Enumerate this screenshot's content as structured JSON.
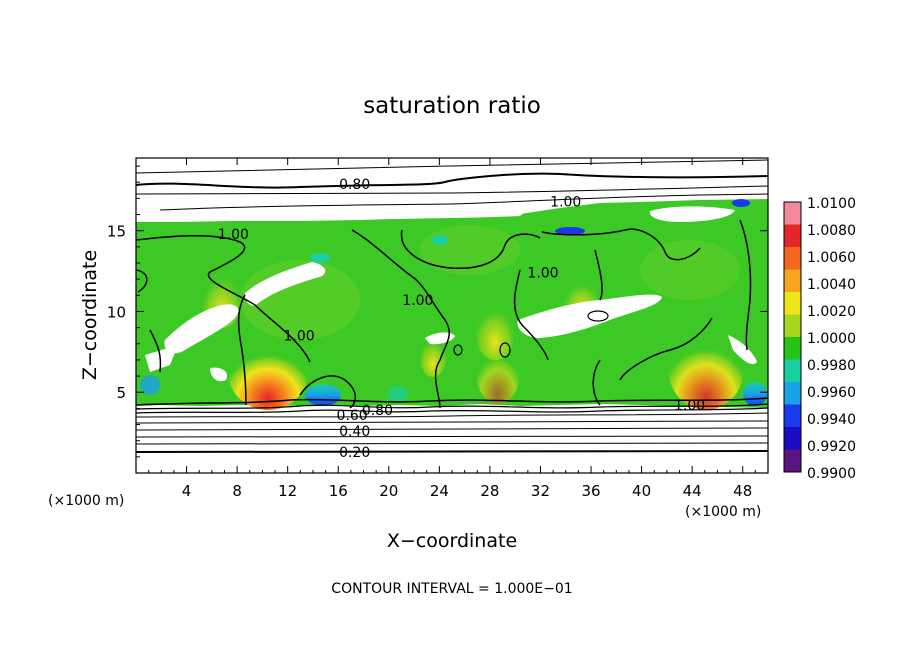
{
  "chart_data": {
    "type": "heatmap",
    "title": "saturation ratio",
    "xlabel": "X−coordinate",
    "ylabel": "Z−coordinate",
    "x_unit_left": "(×1000 m)",
    "x_unit_right": "(×1000 m)",
    "xlim": [
      0,
      50
    ],
    "ylim": [
      0,
      19.5
    ],
    "x_ticks": [
      4,
      8,
      12,
      16,
      20,
      24,
      28,
      32,
      36,
      40,
      44,
      48
    ],
    "x_tick_labels": [
      "4",
      "8",
      "12",
      "16",
      "20",
      "24",
      "28",
      "32",
      "36",
      "40",
      "44",
      "48"
    ],
    "y_ticks": [
      5,
      10,
      15
    ],
    "y_tick_labels": [
      "5",
      "10",
      "15"
    ],
    "colorbar": {
      "labels": [
        "1.0100",
        "1.0080",
        "1.0060",
        "1.0040",
        "1.0020",
        "1.0000",
        "0.9980",
        "0.9960",
        "0.9940",
        "0.9920",
        "0.9900"
      ],
      "colors": [
        "#f28a9c",
        "#e3262a",
        "#f26722",
        "#f7a51e",
        "#efe51b",
        "#a6d61d",
        "#27c317",
        "#19cfa2",
        "#1aa1e8",
        "#1939ec",
        "#1a0cc0",
        "#5a137f"
      ]
    },
    "contour_labels": [
      {
        "text": "0.80",
        "x": 17.3,
        "z": 17.9
      },
      {
        "text": "1.00",
        "x": 34.0,
        "z": 16.8
      },
      {
        "text": "1.00",
        "x": 7.7,
        "z": 14.8
      },
      {
        "text": "1.00",
        "x": 32.2,
        "z": 12.4
      },
      {
        "text": "1.00",
        "x": 22.3,
        "z": 10.7
      },
      {
        "text": "1.00",
        "x": 12.9,
        "z": 8.5
      },
      {
        "text": "1.00",
        "x": 43.8,
        "z": 4.2
      },
      {
        "text": "0.80",
        "x": 19.1,
        "z": 3.9
      },
      {
        "text": "0.60",
        "x": 17.1,
        "z": 3.6
      },
      {
        "text": "0.40",
        "x": 17.3,
        "z": 2.6
      },
      {
        "text": "0.20",
        "x": 17.3,
        "z": 1.3
      }
    ],
    "footer": "CONTOUR INTERVAL = 1.000E−01"
  }
}
